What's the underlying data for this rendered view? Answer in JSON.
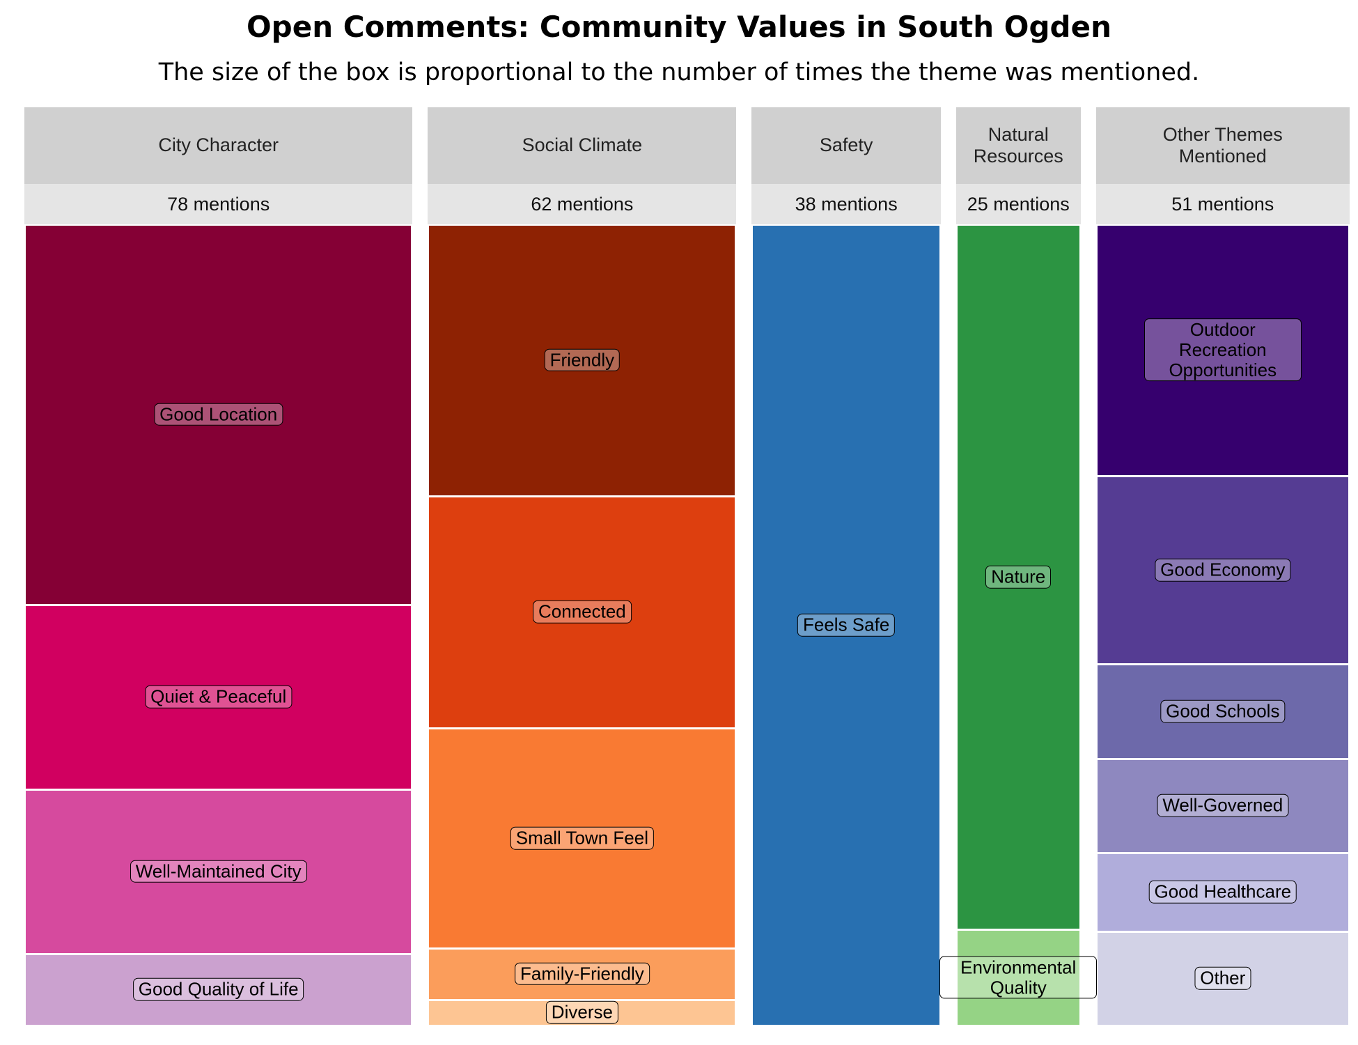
{
  "chart_data": {
    "type": "mosaic",
    "title": "Open Comments: Community Values in South Ogden",
    "subtitle": "The size of the box is proportional to the number of times the theme was mentioned.",
    "groups": [
      {
        "name": "City Character",
        "value": 78,
        "value_label": "78 mentions",
        "children": [
          {
            "name": "Good Location",
            "value": 37,
            "color": "#850035"
          },
          {
            "name": "Quiet & Peaceful",
            "value": 18,
            "color": "#d10060"
          },
          {
            "name": "Well-Maintained City",
            "value": 16,
            "color": "#d64a9e"
          },
          {
            "name": "Good Quality of Life",
            "value": 7,
            "color": "#cba1cf"
          }
        ]
      },
      {
        "name": "Social Climate",
        "value": 62,
        "value_label": "62 mentions",
        "children": [
          {
            "name": "Friendly",
            "value": 21,
            "color": "#8e2203"
          },
          {
            "name": "Connected",
            "value": 18,
            "color": "#dd3f0f"
          },
          {
            "name": "Small Town Feel",
            "value": 17,
            "color": "#f97a33"
          },
          {
            "name": "Family-Friendly",
            "value": 4,
            "color": "#fb9d5b"
          },
          {
            "name": "Diverse",
            "value": 2,
            "color": "#fdc593"
          }
        ]
      },
      {
        "name": "Safety",
        "value": 38,
        "value_label": "38 mentions",
        "children": [
          {
            "name": "Feels Safe",
            "value": 38,
            "color": "#2870b1"
          }
        ]
      },
      {
        "name": "Natural Resources",
        "value": 25,
        "value_label": "25 mentions",
        "children": [
          {
            "name": "Nature",
            "value": 22,
            "color": "#2c9442"
          },
          {
            "name": "Environmental Quality",
            "value": 3,
            "color": "#95d385"
          }
        ]
      },
      {
        "name": "Other Themes Mentioned",
        "value": 51,
        "value_label": "51 mentions",
        "children": [
          {
            "name": "Outdoor Recreation Opportunities",
            "value": 16,
            "color": "#36006e"
          },
          {
            "name": "Good Economy",
            "value": 12,
            "color": "#553c93"
          },
          {
            "name": "Good Schools",
            "value": 6,
            "color": "#6d69aa"
          },
          {
            "name": "Well-Governed",
            "value": 6,
            "color": "#8e88bf"
          },
          {
            "name": "Good Healthcare",
            "value": 5,
            "color": "#b0addb"
          },
          {
            "name": "Other",
            "value": 6,
            "color": "#d2d2e6"
          }
        ]
      }
    ]
  }
}
